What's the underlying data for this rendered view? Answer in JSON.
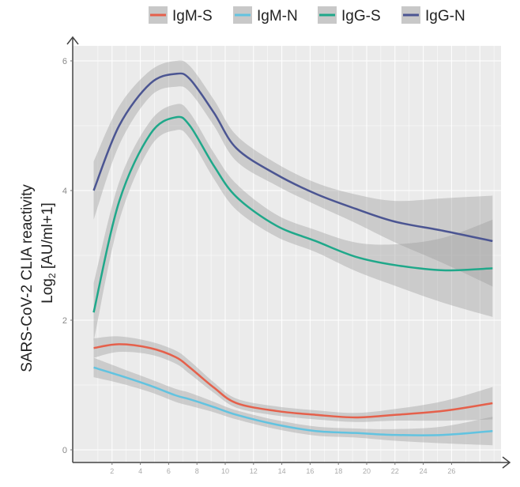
{
  "chart_data": {
    "type": "line",
    "title": "",
    "xlabel": "",
    "ylabel": "SARS-CoV-2 CLIA reactivity",
    "ylabel2_base": "Log",
    "ylabel2_sub": "2",
    "ylabel2_rest": " [AU/ml+1]",
    "xlim": [
      0,
      29.5
    ],
    "ylim": [
      -0.2,
      6.3
    ],
    "xticks": [
      2,
      4,
      6,
      8,
      10,
      12,
      14,
      16,
      18,
      20,
      22,
      24,
      26
    ],
    "yticks": [
      0,
      2,
      4,
      6
    ],
    "legend_position": "top",
    "grid": true,
    "x": [
      0.7,
      2.5,
      4.7,
      6.5,
      7.5,
      9.2,
      10.8,
      13.6,
      16.4,
      19.2,
      22,
      25.4,
      28.9
    ],
    "series": [
      {
        "name": "IgM-S",
        "color": "#e5604b",
        "values": [
          1.57,
          1.63,
          1.57,
          1.43,
          1.27,
          0.96,
          0.72,
          0.6,
          0.54,
          0.5,
          0.54,
          0.6,
          0.72
        ],
        "ci": [
          0.15,
          0.12,
          0.1,
          0.1,
          0.1,
          0.08,
          0.07,
          0.07,
          0.07,
          0.07,
          0.09,
          0.15,
          0.25
        ]
      },
      {
        "name": "IgM-N",
        "color": "#62c3e0",
        "values": [
          1.27,
          1.15,
          0.99,
          0.84,
          0.78,
          0.66,
          0.54,
          0.39,
          0.29,
          0.26,
          0.23,
          0.23,
          0.29
        ],
        "ci": [
          0.15,
          0.12,
          0.1,
          0.1,
          0.1,
          0.08,
          0.07,
          0.07,
          0.07,
          0.07,
          0.09,
          0.13,
          0.22
        ]
      },
      {
        "name": "IgG-S",
        "color": "#1fa88a",
        "values": [
          2.12,
          3.83,
          4.87,
          5.13,
          5.0,
          4.38,
          3.9,
          3.46,
          3.22,
          2.98,
          2.85,
          2.77,
          2.8
        ],
        "ci": [
          0.45,
          0.3,
          0.2,
          0.2,
          0.2,
          0.2,
          0.2,
          0.17,
          0.17,
          0.22,
          0.32,
          0.5,
          0.75
        ]
      },
      {
        "name": "IgG-N",
        "color": "#4b5592",
        "values": [
          4.0,
          5.0,
          5.65,
          5.8,
          5.72,
          5.2,
          4.65,
          4.25,
          3.95,
          3.72,
          3.52,
          3.38,
          3.22
        ],
        "ci": [
          0.45,
          0.3,
          0.2,
          0.2,
          0.2,
          0.2,
          0.2,
          0.17,
          0.17,
          0.22,
          0.32,
          0.5,
          0.7
        ]
      }
    ]
  }
}
